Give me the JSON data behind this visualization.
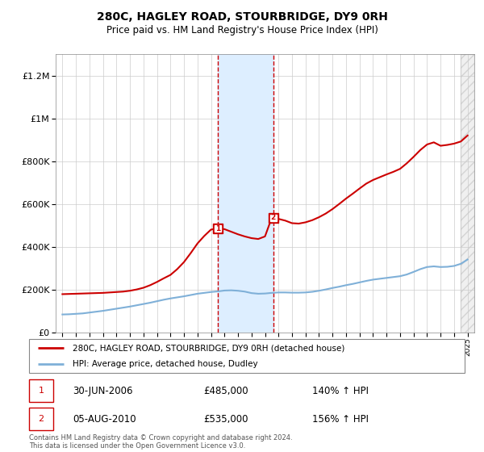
{
  "title": "280C, HAGLEY ROAD, STOURBRIDGE, DY9 0RH",
  "subtitle": "Price paid vs. HM Land Registry's House Price Index (HPI)",
  "legend_line1": "280C, HAGLEY ROAD, STOURBRIDGE, DY9 0RH (detached house)",
  "legend_line2": "HPI: Average price, detached house, Dudley",
  "sale1_date": "30-JUN-2006",
  "sale1_price": "£485,000",
  "sale1_hpi": "140% ↑ HPI",
  "sale1_year": 2006.5,
  "sale1_value": 485000,
  "sale2_date": "05-AUG-2010",
  "sale2_price": "£535,000",
  "sale2_hpi": "156% ↑ HPI",
  "sale2_year": 2010.6,
  "sale2_value": 535000,
  "copyright": "Contains HM Land Registry data © Crown copyright and database right 2024.\nThis data is licensed under the Open Government Licence v3.0.",
  "red_line_color": "#cc0000",
  "blue_line_color": "#7fb0d8",
  "shade_color": "#ddeeff",
  "vline_color": "#cc0000",
  "ylim_max": 1300000,
  "xlim_start": 1994.5,
  "xlim_end": 2025.5,
  "hatch_start": 2024.5,
  "yticks": [
    0,
    200000,
    400000,
    600000,
    800000,
    1000000,
    1200000
  ],
  "ytick_labels": [
    "£0",
    "£200K",
    "£400K",
    "£600K",
    "£800K",
    "£1M",
    "£1.2M"
  ],
  "hpi_years": [
    1995,
    1995.5,
    1996,
    1996.5,
    1997,
    1997.5,
    1998,
    1998.5,
    1999,
    1999.5,
    2000,
    2000.5,
    2001,
    2001.5,
    2002,
    2002.5,
    2003,
    2003.5,
    2004,
    2004.5,
    2005,
    2005.5,
    2006,
    2006.5,
    2007,
    2007.5,
    2008,
    2008.5,
    2009,
    2009.5,
    2010,
    2010.5,
    2011,
    2011.5,
    2012,
    2012.5,
    2013,
    2013.5,
    2014,
    2014.5,
    2015,
    2015.5,
    2016,
    2016.5,
    2017,
    2017.5,
    2018,
    2018.5,
    2019,
    2019.5,
    2020,
    2020.5,
    2021,
    2021.5,
    2022,
    2022.5,
    2023,
    2023.5,
    2024,
    2024.5,
    2025
  ],
  "hpi_values": [
    83000,
    84000,
    86000,
    88000,
    92000,
    96000,
    100000,
    105000,
    110000,
    115000,
    120000,
    126000,
    132000,
    138000,
    145000,
    152000,
    158000,
    163000,
    168000,
    174000,
    180000,
    184000,
    188000,
    191000,
    195000,
    196000,
    194000,
    190000,
    183000,
    180000,
    181000,
    184000,
    186000,
    186000,
    185000,
    185000,
    186000,
    189000,
    194000,
    200000,
    207000,
    213000,
    220000,
    226000,
    233000,
    240000,
    246000,
    250000,
    254000,
    258000,
    262000,
    270000,
    282000,
    295000,
    305000,
    308000,
    305000,
    306000,
    310000,
    320000,
    340000
  ],
  "red_years": [
    1995,
    1995.5,
    1996,
    1996.5,
    1997,
    1997.5,
    1998,
    1998.5,
    1999,
    1999.5,
    2000,
    2000.5,
    2001,
    2001.5,
    2002,
    2002.5,
    2003,
    2003.5,
    2004,
    2004.5,
    2005,
    2005.5,
    2006,
    2006.5,
    2007,
    2007.5,
    2008,
    2008.5,
    2009,
    2009.5,
    2010,
    2010.5,
    2011,
    2011.5,
    2012,
    2012.5,
    2013,
    2013.5,
    2014,
    2014.5,
    2015,
    2015.5,
    2016,
    2016.5,
    2017,
    2017.5,
    2018,
    2018.5,
    2019,
    2019.5,
    2020,
    2020.5,
    2021,
    2021.5,
    2022,
    2022.5,
    2023,
    2023.5,
    2024,
    2024.5,
    2025
  ],
  "red_values": [
    178000,
    179000,
    180000,
    181000,
    182000,
    183000,
    184000,
    186000,
    188000,
    190000,
    194000,
    200000,
    208000,
    220000,
    235000,
    252000,
    268000,
    295000,
    328000,
    370000,
    415000,
    450000,
    480000,
    485000,
    482000,
    470000,
    458000,
    448000,
    440000,
    436000,
    448000,
    535000,
    530000,
    522000,
    510000,
    508000,
    514000,
    524000,
    538000,
    555000,
    576000,
    600000,
    625000,
    648000,
    672000,
    695000,
    712000,
    725000,
    738000,
    750000,
    764000,
    790000,
    820000,
    852000,
    878000,
    888000,
    872000,
    876000,
    882000,
    892000,
    920000
  ]
}
